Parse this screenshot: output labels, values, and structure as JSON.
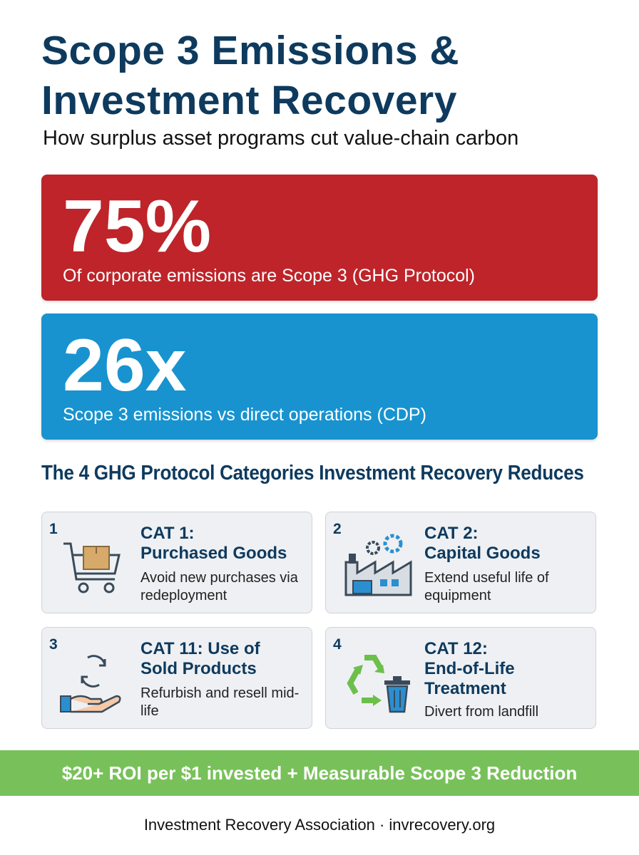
{
  "header": {
    "title_lines": [
      "Scope 3 Emissions &",
      "Investment Recovery"
    ],
    "subtitle": "How surplus asset programs cut value-chain carbon"
  },
  "stats": [
    {
      "value": "75%",
      "label": "Of corporate emissions are Scope 3 (GHG Protocol)"
    },
    {
      "value": "26x",
      "label": "Scope 3 emissions vs direct operations (CDP)"
    }
  ],
  "section_title": "The 4 GHG Protocol Categories Investment Recovery Reduces",
  "categories": [
    {
      "number": "1",
      "title_lines": [
        "CAT 1:",
        "Purchased Goods"
      ],
      "description": "Avoid new purchases via redeployment"
    },
    {
      "number": "2",
      "title_lines": [
        "CAT 2:",
        "Capital Goods"
      ],
      "description": "Extend useful life of equipment"
    },
    {
      "number": "3",
      "title_lines": [
        "CAT 11: Use of",
        "Sold Products"
      ],
      "description": "Refurbish and resell mid-life"
    },
    {
      "number": "4",
      "title_lines": [
        "CAT 12:",
        "End-of-Life",
        "Treatment"
      ],
      "description": "Divert from landfill"
    }
  ],
  "banner": "$20+ ROI per $1 invested + Measurable Scope 3 Reduction",
  "footer": "Investment Recovery Association · invrecovery.org"
}
